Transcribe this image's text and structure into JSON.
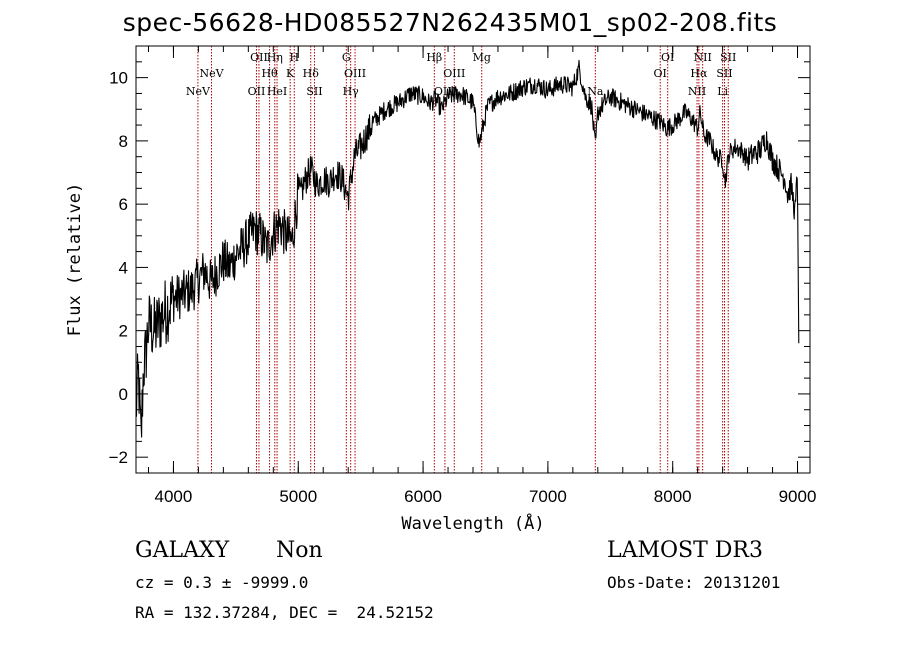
{
  "title": "spec-56628-HD085527N262435M01_sp02-208.fits",
  "footer": {
    "class_label": "GALAXY",
    "subclass_label": "Non",
    "survey": "LAMOST DR3",
    "cz_text": "cz = 0.3 ± -9999.0",
    "obs_date": "Obs-Date: 20131201",
    "radec": "RA = 132.37284, DEC =  24.52152"
  },
  "chart_data": {
    "type": "line",
    "title": "spec-56628-HD085527N262435M01_sp02-208.fits",
    "xlabel": "Wavelength (Å)",
    "ylabel": "Flux (relative)",
    "xlim": [
      3700,
      9100
    ],
    "ylim": [
      -2.5,
      11
    ],
    "xticks": [
      4000,
      5000,
      6000,
      7000,
      8000,
      9000
    ],
    "yticks": [
      -2,
      0,
      2,
      4,
      6,
      8,
      10
    ],
    "grid": false,
    "colors": {
      "spectrum": "#000000",
      "lines": "#b00000",
      "axes": "#000000"
    },
    "spectrum": {
      "noise": 0.3,
      "x": [
        3700,
        3720,
        3740,
        3760,
        3780,
        3800,
        3850,
        3900,
        3950,
        4000,
        4050,
        4100,
        4150,
        4200,
        4250,
        4300,
        4350,
        4400,
        4450,
        4500,
        4550,
        4600,
        4650,
        4700,
        4750,
        4800,
        4850,
        4900,
        4950,
        5000,
        5020,
        5050,
        5100,
        5150,
        5200,
        5250,
        5300,
        5350,
        5400,
        5450,
        5500,
        5600,
        5700,
        5800,
        5900,
        6000,
        6050,
        6100,
        6150,
        6200,
        6300,
        6400,
        6450,
        6500,
        6520,
        6600,
        6700,
        6800,
        6900,
        7000,
        7100,
        7200,
        7250,
        7300,
        7350,
        7380,
        7400,
        7450,
        7500,
        7600,
        7700,
        7800,
        7900,
        7950,
        8000,
        8050,
        8100,
        8150,
        8200,
        8220,
        8250,
        8300,
        8350,
        8400,
        8420,
        8450,
        8500,
        8550,
        8600,
        8650,
        8700,
        8750,
        8800,
        8850,
        8900,
        8920,
        8950,
        8980,
        9000,
        9010
      ],
      "y": [
        -0.5,
        0.6,
        -1.6,
        0.8,
        1.3,
        2.2,
        2.0,
        2.4,
        2.7,
        3.0,
        3.1,
        3.2,
        3.3,
        3.6,
        3.9,
        3.5,
        3.9,
        4.2,
        4.0,
        4.4,
        4.6,
        4.9,
        5.2,
        5.0,
        4.6,
        5.1,
        5.4,
        5.0,
        4.8,
        6.4,
        6.3,
        6.7,
        7.1,
        6.6,
        6.8,
        6.7,
        7.0,
        6.8,
        6.2,
        7.5,
        7.8,
        8.6,
        9.0,
        9.2,
        9.5,
        9.4,
        9.2,
        9.3,
        9.0,
        9.4,
        9.5,
        9.2,
        7.9,
        8.8,
        9.1,
        9.4,
        9.5,
        9.7,
        9.8,
        9.6,
        9.8,
        9.7,
        10.3,
        9.4,
        9.1,
        7.8,
        8.9,
        9.2,
        9.4,
        9.2,
        9.0,
        8.8,
        8.6,
        8.4,
        8.5,
        8.7,
        8.9,
        8.7,
        8.4,
        8.9,
        8.2,
        8.0,
        7.5,
        7.4,
        6.7,
        7.6,
        7.8,
        7.7,
        7.4,
        7.6,
        7.7,
        8.1,
        7.4,
        7.1,
        6.8,
        6.3,
        6.6,
        5.7,
        7.0,
        1.6
      ]
    },
    "lines": [
      {
        "name": "NeV",
        "wave": 4196,
        "row": 0
      },
      {
        "name": "NeV",
        "wave": 4305,
        "row": 1
      },
      {
        "name": "OII",
        "wave": 4665,
        "row": 0
      },
      {
        "name": "OII",
        "wave": 4685,
        "row": 2
      },
      {
        "name": "Hθ",
        "wave": 4770,
        "row": 1
      },
      {
        "name": "Hη",
        "wave": 4812,
        "row": 2
      },
      {
        "name": "HeI",
        "wave": 4830,
        "row": 0
      },
      {
        "name": "K",
        "wave": 4935,
        "row": 1
      },
      {
        "name": "H",
        "wave": 4968,
        "row": 2
      },
      {
        "name": "Hδ",
        "wave": 5100,
        "row": 1
      },
      {
        "name": "SII",
        "wave": 5130,
        "row": 0
      },
      {
        "name": "G",
        "wave": 5385,
        "row": 2
      },
      {
        "name": "Hγ",
        "wave": 5420,
        "row": 0
      },
      {
        "name": "OIII",
        "wave": 5455,
        "row": 1
      },
      {
        "name": "Hβ",
        "wave": 6090,
        "row": 2
      },
      {
        "name": "OIII",
        "wave": 6175,
        "row": 0
      },
      {
        "name": "OIII",
        "wave": 6250,
        "row": 1
      },
      {
        "name": "Mg",
        "wave": 6470,
        "row": 2
      },
      {
        "name": "Na",
        "wave": 7380,
        "row": 0
      },
      {
        "name": "OI",
        "wave": 7900,
        "row": 1
      },
      {
        "name": "OI",
        "wave": 7960,
        "row": 2
      },
      {
        "name": "NII",
        "wave": 8195,
        "row": 0
      },
      {
        "name": "Hα",
        "wave": 8210,
        "row": 1
      },
      {
        "name": "NII",
        "wave": 8240,
        "row": 2
      },
      {
        "name": "Li",
        "wave": 8400,
        "row": 0
      },
      {
        "name": "SII",
        "wave": 8415,
        "row": 1
      },
      {
        "name": "SII",
        "wave": 8445,
        "row": 2
      }
    ]
  }
}
